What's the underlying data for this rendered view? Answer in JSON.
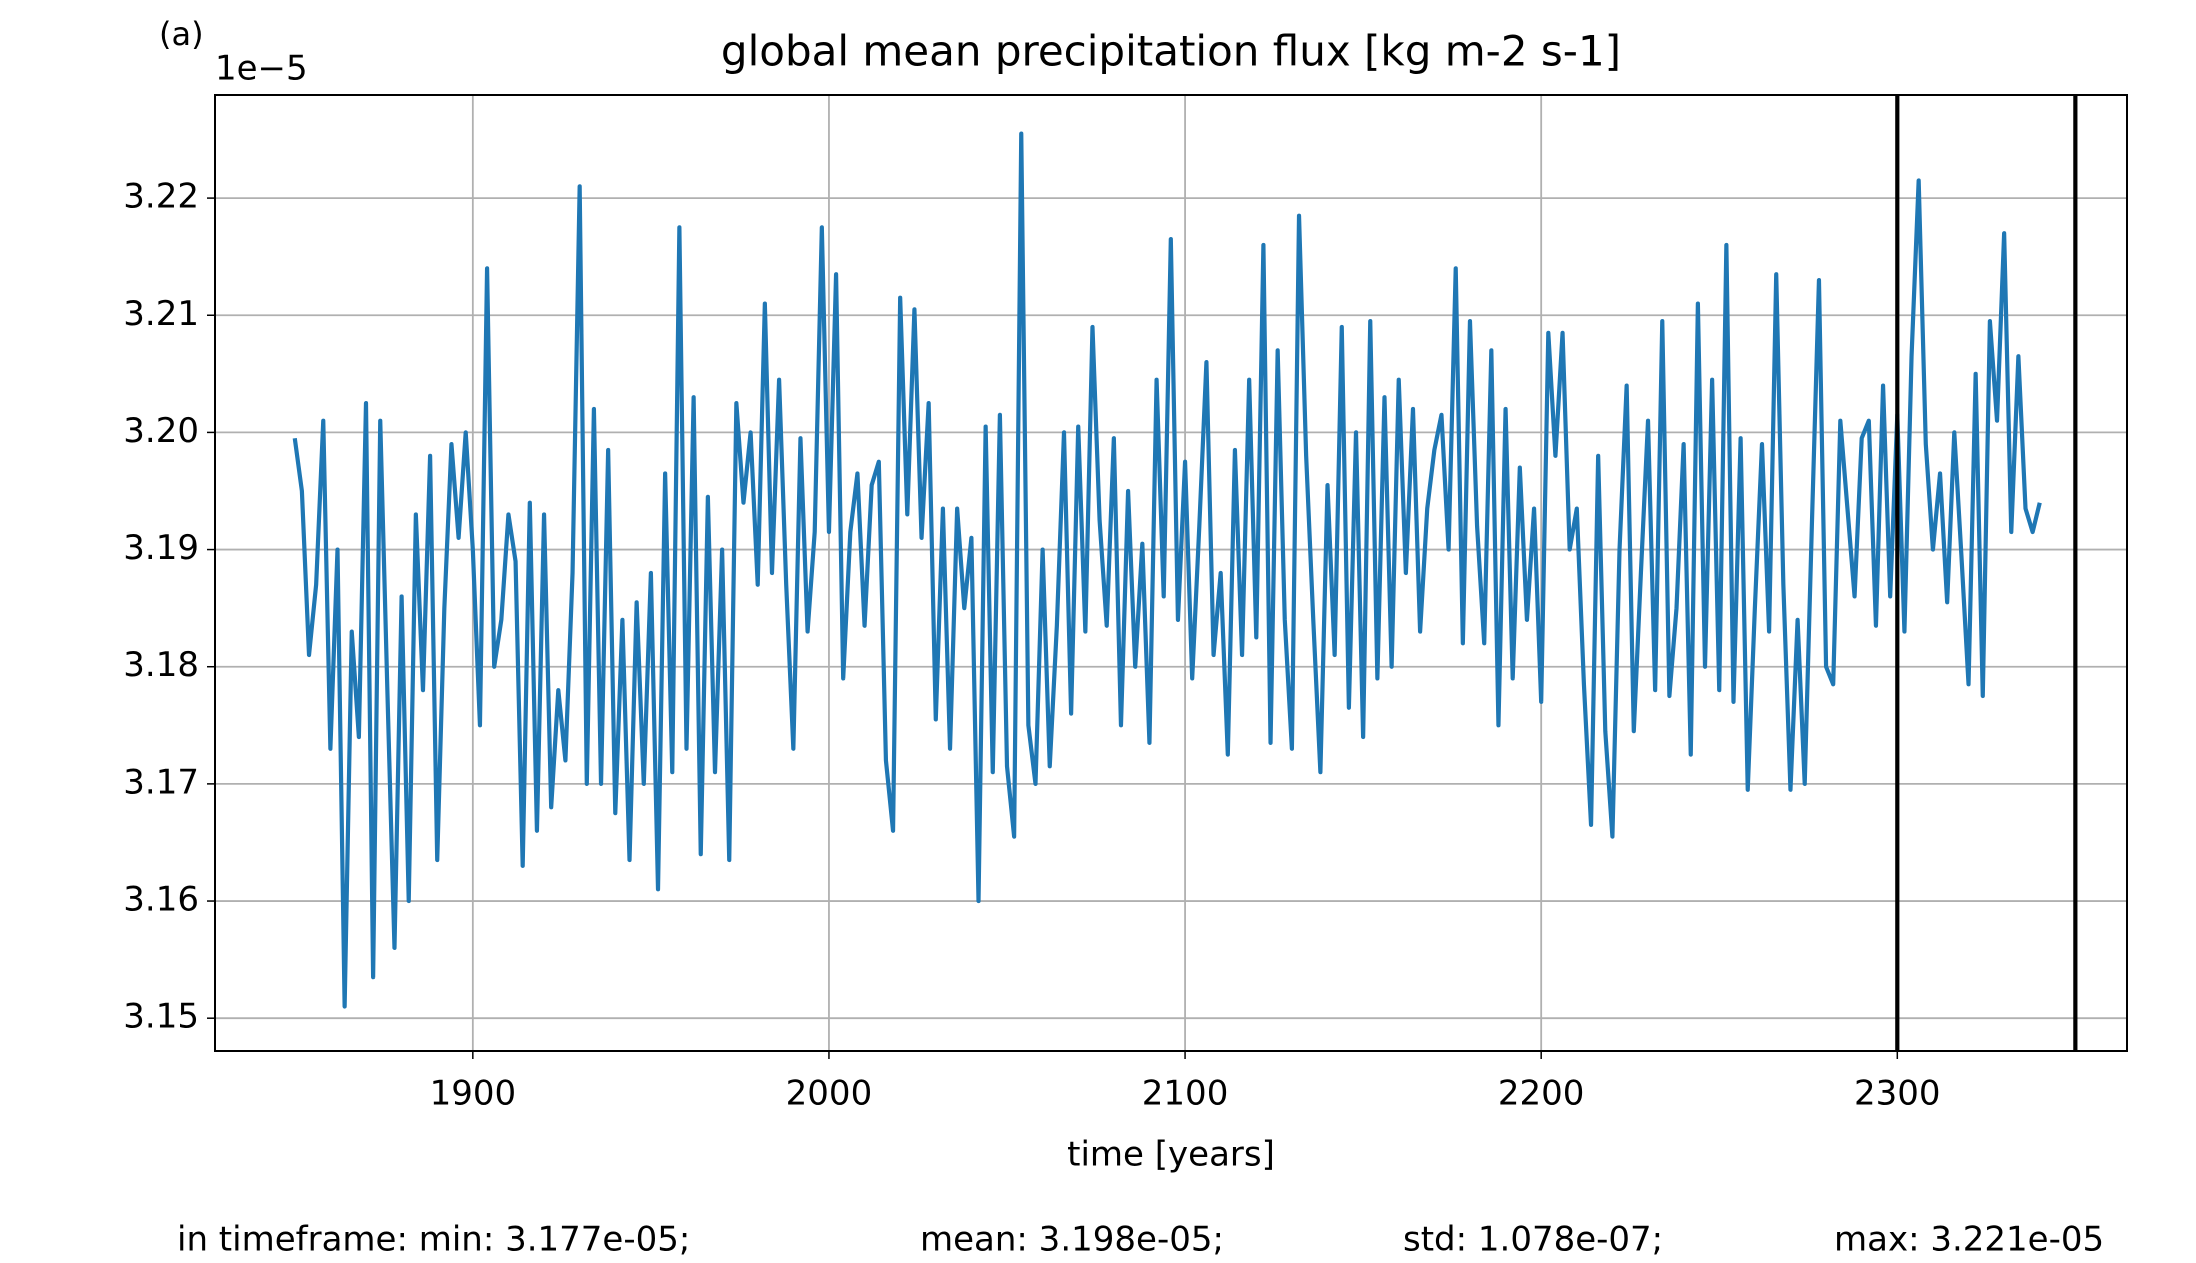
{
  "chart_data": {
    "type": "line",
    "panel_label": "(a)",
    "title": "global mean precipitation flux [kg m-2 s-1]",
    "y_offset_label": "1e−5",
    "xlabel": "time [years]",
    "footer": [
      "in timeframe: min: 3.177e-05;",
      "mean: 3.198e-05;",
      "std: 1.078e-07;",
      "max: 3.221e-05"
    ],
    "x": [
      1850,
      1852,
      1854,
      1856,
      1858,
      1860,
      1862,
      1864,
      1866,
      1868,
      1870,
      1872,
      1874,
      1876,
      1878,
      1880,
      1882,
      1884,
      1886,
      1888,
      1890,
      1892,
      1894,
      1896,
      1898,
      1900,
      1902,
      1904,
      1906,
      1908,
      1910,
      1912,
      1914,
      1916,
      1918,
      1920,
      1922,
      1924,
      1926,
      1928,
      1930,
      1932,
      1934,
      1936,
      1938,
      1940,
      1942,
      1944,
      1946,
      1948,
      1950,
      1952,
      1954,
      1956,
      1958,
      1960,
      1962,
      1964,
      1966,
      1968,
      1970,
      1972,
      1974,
      1976,
      1978,
      1980,
      1982,
      1984,
      1986,
      1988,
      1990,
      1992,
      1994,
      1996,
      1998,
      2000,
      2002,
      2004,
      2006,
      2008,
      2010,
      2012,
      2014,
      2016,
      2018,
      2020,
      2022,
      2024,
      2026,
      2028,
      2030,
      2032,
      2034,
      2036,
      2038,
      2040,
      2042,
      2044,
      2046,
      2048,
      2050,
      2052,
      2054,
      2056,
      2058,
      2060,
      2062,
      2064,
      2066,
      2068,
      2070,
      2072,
      2074,
      2076,
      2078,
      2080,
      2082,
      2084,
      2086,
      2088,
      2090,
      2092,
      2094,
      2096,
      2098,
      2100,
      2102,
      2104,
      2106,
      2108,
      2110,
      2112,
      2114,
      2116,
      2118,
      2120,
      2122,
      2124,
      2126,
      2128,
      2130,
      2132,
      2134,
      2136,
      2138,
      2140,
      2142,
      2144,
      2146,
      2148,
      2150,
      2152,
      2154,
      2156,
      2158,
      2160,
      2162,
      2164,
      2166,
      2168,
      2170,
      2172,
      2174,
      2176,
      2178,
      2180,
      2182,
      2184,
      2186,
      2188,
      2190,
      2192,
      2194,
      2196,
      2198,
      2200,
      2202,
      2204,
      2206,
      2208,
      2210,
      2212,
      2214,
      2216,
      2218,
      2220,
      2222,
      2224,
      2226,
      2228,
      2230,
      2232,
      2234,
      2236,
      2238,
      2240,
      2242,
      2244,
      2246,
      2248,
      2250,
      2252,
      2254,
      2256,
      2258,
      2260,
      2262,
      2264,
      2266,
      2268,
      2270,
      2272,
      2274,
      2276,
      2278,
      2280,
      2282,
      2284,
      2286,
      2288,
      2290,
      2292,
      2294,
      2296,
      2298,
      2300,
      2302,
      2304,
      2306,
      2308,
      2310,
      2312,
      2314,
      2316,
      2318,
      2320,
      2322,
      2324,
      2326,
      2328,
      2330,
      2332,
      2334,
      2336,
      2338,
      2340
    ],
    "series": [
      {
        "color": "#1f77b4",
        "values": [
          3.1995,
          3.195,
          3.181,
          3.187,
          3.201,
          3.173,
          3.19,
          3.151,
          3.183,
          3.174,
          3.2025,
          3.1535,
          3.201,
          3.178,
          3.156,
          3.186,
          3.16,
          3.193,
          3.178,
          3.198,
          3.1635,
          3.185,
          3.199,
          3.191,
          3.2,
          3.19,
          3.175,
          3.214,
          3.18,
          3.184,
          3.193,
          3.189,
          3.163,
          3.194,
          3.166,
          3.193,
          3.168,
          3.178,
          3.172,
          3.188,
          3.221,
          3.17,
          3.202,
          3.17,
          3.1985,
          3.1675,
          3.184,
          3.1635,
          3.1855,
          3.17,
          3.188,
          3.161,
          3.1965,
          3.171,
          3.2175,
          3.173,
          3.203,
          3.164,
          3.1945,
          3.171,
          3.19,
          3.1635,
          3.2025,
          3.194,
          3.2,
          3.187,
          3.211,
          3.188,
          3.2045,
          3.187,
          3.173,
          3.1995,
          3.183,
          3.1915,
          3.2175,
          3.1915,
          3.2135,
          3.179,
          3.1915,
          3.1965,
          3.1835,
          3.1955,
          3.1975,
          3.172,
          3.166,
          3.2115,
          3.193,
          3.2105,
          3.191,
          3.2025,
          3.1755,
          3.1935,
          3.173,
          3.1935,
          3.185,
          3.191,
          3.16,
          3.2005,
          3.171,
          3.2015,
          3.1715,
          3.1655,
          3.2255,
          3.175,
          3.17,
          3.19,
          3.1715,
          3.1835,
          3.2,
          3.176,
          3.2005,
          3.183,
          3.209,
          3.1925,
          3.1835,
          3.1995,
          3.175,
          3.195,
          3.18,
          3.1905,
          3.1735,
          3.2045,
          3.186,
          3.2165,
          3.184,
          3.1975,
          3.179,
          3.192,
          3.206,
          3.181,
          3.188,
          3.1725,
          3.1985,
          3.181,
          3.2045,
          3.1825,
          3.216,
          3.1735,
          3.207,
          3.184,
          3.173,
          3.2185,
          3.198,
          3.184,
          3.171,
          3.1955,
          3.181,
          3.209,
          3.1765,
          3.2,
          3.174,
          3.2095,
          3.179,
          3.203,
          3.18,
          3.2045,
          3.188,
          3.202,
          3.183,
          3.1935,
          3.1985,
          3.2015,
          3.19,
          3.214,
          3.182,
          3.2095,
          3.192,
          3.182,
          3.207,
          3.175,
          3.202,
          3.179,
          3.197,
          3.184,
          3.1935,
          3.177,
          3.2085,
          3.198,
          3.2085,
          3.19,
          3.1935,
          3.1785,
          3.1665,
          3.198,
          3.1745,
          3.1655,
          3.19,
          3.204,
          3.1745,
          3.188,
          3.201,
          3.178,
          3.2095,
          3.1775,
          3.185,
          3.199,
          3.1725,
          3.211,
          3.18,
          3.2045,
          3.178,
          3.216,
          3.177,
          3.1995,
          3.1695,
          3.185,
          3.199,
          3.183,
          3.2135,
          3.187,
          3.1695,
          3.184,
          3.17,
          3.192,
          3.213,
          3.18,
          3.1785,
          3.201,
          3.1935,
          3.186,
          3.1995,
          3.201,
          3.1835,
          3.204,
          3.186,
          3.2015,
          3.183,
          3.2065,
          3.2215,
          3.199,
          3.19,
          3.1965,
          3.1855,
          3.2,
          3.1895,
          3.1785,
          3.205,
          3.1775,
          3.2095,
          3.201,
          3.217,
          3.1915,
          3.2065,
          3.1935,
          3.1915,
          3.194
        ]
      }
    ],
    "xlim": [
      1827.6,
      2364.5
    ],
    "xticks": [
      1900,
      2000,
      2100,
      2200,
      2300
    ],
    "ylim": [
      3.1472,
      3.2288
    ],
    "yticks": [
      3.15,
      3.16,
      3.17,
      3.18,
      3.19,
      {
        "value": 3.2,
        "label": "3.20"
      },
      3.21,
      3.22
    ],
    "vlines": [
      2300,
      2350
    ],
    "vline_color": "#000000",
    "grid": true
  }
}
